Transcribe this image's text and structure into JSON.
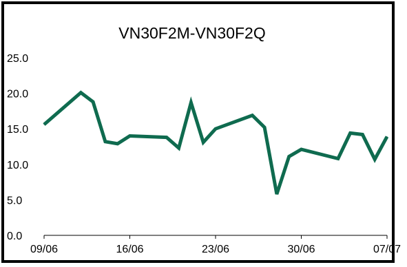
{
  "chart_data": {
    "type": "line",
    "title": "VN30F2M-VN30F2Q",
    "xlabel": "",
    "ylabel": "",
    "ylim": [
      0,
      25
    ],
    "yticks": [
      "0.0",
      "5.0",
      "10.0",
      "15.0",
      "20.0",
      "25.0"
    ],
    "xlim": [
      "09/06",
      "07/07"
    ],
    "xticks": [
      "09/06",
      "16/06",
      "23/06",
      "30/06",
      "07/07"
    ],
    "grid": false,
    "legend": "none",
    "line_color": "#0f6b4f",
    "series": [
      {
        "x": [
          "09/06",
          "12/06",
          "13/06",
          "14/06",
          "15/06",
          "16/06",
          "19/06",
          "20/06",
          "21/06",
          "22/06",
          "23/06",
          "26/06",
          "27/06",
          "28/06",
          "29/06",
          "30/06",
          "03/07",
          "04/07",
          "05/07",
          "06/07",
          "07/07"
        ],
        "values": [
          15.6,
          20.1,
          18.8,
          13.2,
          12.9,
          14.0,
          13.8,
          12.3,
          18.7,
          13.1,
          15.0,
          16.9,
          15.2,
          5.8,
          11.1,
          12.1,
          10.8,
          14.4,
          14.2,
          10.7,
          13.9
        ]
      }
    ]
  }
}
